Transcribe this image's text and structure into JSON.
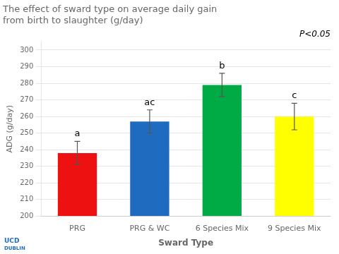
{
  "chart_data": {
    "type": "bar",
    "title": [
      "The effect of sward type on average daily gain",
      "from birth to slaughter (g/day)"
    ],
    "x_label": "Sward Type",
    "y_label": "ADG (g/day)",
    "categories": [
      "PRG",
      "PRG & WC",
      "6 Species Mix",
      "9 Species Mix"
    ],
    "values": [
      238,
      257,
      279,
      260
    ],
    "errors": [
      7,
      7,
      7,
      8
    ],
    "colors": [
      "#ee1111",
      "#1e6bbf",
      "#00aa44",
      "#ffff00"
    ],
    "ylim": [
      200,
      305
    ],
    "yticks": [
      200,
      210,
      220,
      230,
      240,
      250,
      260,
      270,
      280,
      290,
      300
    ],
    "grid": true,
    "annotations": [
      {
        "text": "P<0.05"
      },
      {
        "text": "a",
        "category": "PRG"
      },
      {
        "text": "ac",
        "category": "PRG & WC"
      },
      {
        "text": "b",
        "category": "6 Species Mix"
      },
      {
        "text": "c",
        "category": "9 Species Mix"
      },
      {
        "text": "UCD"
      },
      {
        "text": "DUBLIN"
      }
    ]
  }
}
